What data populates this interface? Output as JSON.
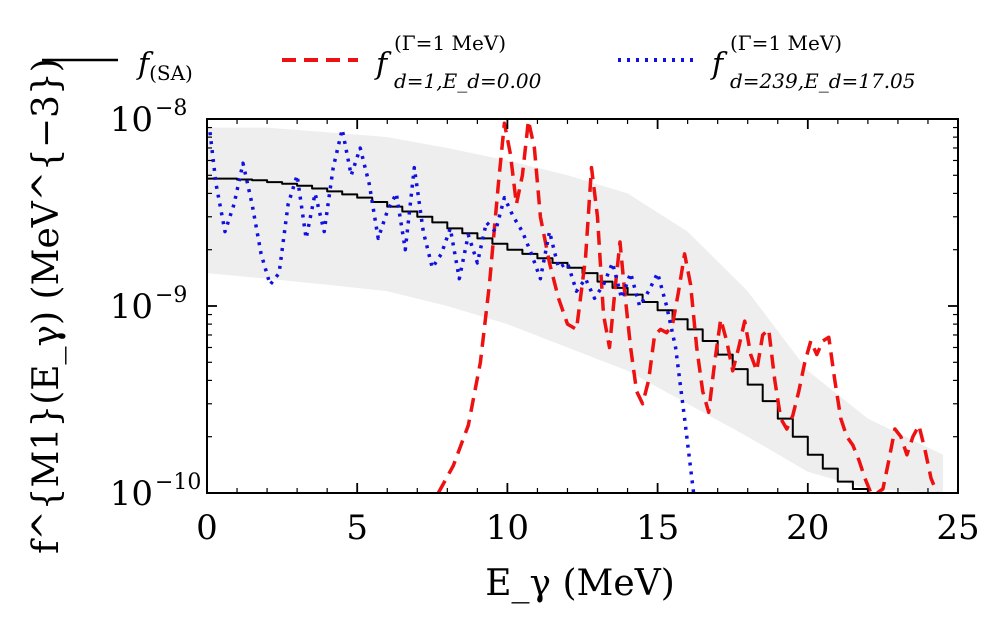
{
  "chart_data": {
    "type": "line",
    "xlabel": "E_γ (MeV)",
    "ylabel": "f^{M1}(E_γ) (MeV^{−3})",
    "xlim": [
      0,
      25
    ],
    "ylim": [
      1e-10,
      1e-08
    ],
    "yscale": "log",
    "x_ticks": [
      0,
      5,
      10,
      15,
      20,
      25
    ],
    "x_tick_labels": [
      "0",
      "5",
      "10",
      "15",
      "20",
      "25"
    ],
    "y_ticks": [
      1e-10,
      1e-09,
      1e-08
    ],
    "y_tick_labels": [
      "10",
      "10",
      "10"
    ],
    "y_tick_exponents": [
      "−10",
      "−9",
      "−8"
    ],
    "grid": false,
    "legend_position": "top",
    "legend": [
      {
        "label": "f",
        "sub": "(SA)",
        "sup": ""
      },
      {
        "label": "f",
        "sub": "d=1,E_d=0.00",
        "sup": "(Γ=1 MeV)"
      },
      {
        "label": "f",
        "sub": "d=239,E_d=17.05",
        "sup": "(Γ=1 MeV)"
      }
    ],
    "series": [
      {
        "name": "f(SA)",
        "color": "#000000",
        "style": "step",
        "x": [
          0,
          0.5,
          1,
          1.5,
          2,
          2.5,
          3,
          3.5,
          4,
          4.5,
          5,
          5.5,
          6,
          6.5,
          7,
          7.5,
          8,
          8.5,
          9,
          9.5,
          10,
          10.5,
          11,
          11.5,
          12,
          12.5,
          13,
          13.5,
          14,
          14.5,
          15,
          15.5,
          16,
          16.5,
          17,
          17.5,
          18,
          18.5,
          19,
          19.5,
          20,
          20.5,
          21,
          21.5,
          22
        ],
        "y": [
          4.8e-09,
          4.8e-09,
          4.75e-09,
          4.7e-09,
          4.6e-09,
          4.5e-09,
          4.4e-09,
          4.25e-09,
          4.1e-09,
          3.95e-09,
          3.8e-09,
          3.6e-09,
          3.4e-09,
          3.2e-09,
          3e-09,
          2.8e-09,
          2.6e-09,
          2.45e-09,
          2.3e-09,
          2.15e-09,
          2e-09,
          1.9e-09,
          1.8e-09,
          1.7e-09,
          1.6e-09,
          1.5e-09,
          1.35e-09,
          1.25e-09,
          1.15e-09,
          1.05e-09,
          9.5e-10,
          8.5e-10,
          7.5e-10,
          6.5e-10,
          5.5e-10,
          4.6e-10,
          3.8e-10,
          3.1e-10,
          2.5e-10,
          2e-10,
          1.6e-10,
          1.35e-10,
          1.15e-10,
          1.05e-10,
          1e-10
        ]
      },
      {
        "name": "f(Γ=1 MeV) d=1,Ed=0.00",
        "color": "#ee1111",
        "style": "dashed",
        "x": [
          7.7,
          8.2,
          8.7,
          9.1,
          9.4,
          9.7,
          9.9,
          10.1,
          10.3,
          10.5,
          10.7,
          10.9,
          11.1,
          11.4,
          11.7,
          12.0,
          12.3,
          12.6,
          12.8,
          13.0,
          13.2,
          13.4,
          13.6,
          13.75,
          13.9,
          14.1,
          14.3,
          14.5,
          14.7,
          14.9,
          15.1,
          15.3,
          15.5,
          15.7,
          15.9,
          16.1,
          16.3,
          16.5,
          16.7,
          16.9,
          17.1,
          17.3,
          17.5,
          17.7,
          17.9,
          18.1,
          18.3,
          18.5,
          18.7,
          18.9,
          19.1,
          19.3,
          19.5,
          19.7,
          19.9,
          20.1,
          20.3,
          20.5,
          20.7,
          20.9,
          21.1,
          21.3,
          21.5,
          21.7,
          21.9,
          22.1,
          22.3,
          22.5,
          22.7,
          22.9,
          23.1,
          23.3,
          23.5,
          23.7,
          23.9,
          24.1,
          24.3
        ],
        "y": [
          1e-10,
          1.4e-10,
          2.3e-10,
          5e-10,
          1.3e-09,
          4.5e-09,
          9.5e-09,
          6.5e-09,
          3.5e-09,
          5e-09,
          9.8e-09,
          7e-09,
          3e-09,
          1.7e-09,
          1.1e-09,
          8e-10,
          7.5e-10,
          1.8e-09,
          5.5e-09,
          3e-09,
          9e-10,
          6e-10,
          1.3e-09,
          2.2e-09,
          1.2e-09,
          6e-10,
          3.5e-10,
          3e-10,
          4e-10,
          7e-10,
          7.5e-10,
          7.2e-10,
          8e-10,
          1.2e-09,
          1.9e-09,
          1.3e-09,
          6e-10,
          3.5e-10,
          2.7e-10,
          5e-10,
          8.5e-10,
          6.5e-10,
          4.5e-10,
          6e-10,
          8.3e-10,
          5.5e-10,
          4.5e-10,
          7e-10,
          7.5e-10,
          4e-10,
          2.5e-10,
          2.2e-10,
          2.6e-10,
          3.5e-10,
          5e-10,
          6.5e-10,
          5.5e-10,
          6.5e-10,
          6.8e-10,
          4e-10,
          2.5e-10,
          2e-10,
          1.8e-10,
          1.5e-10,
          1.2e-10,
          1e-10,
          1e-10,
          1.05e-10,
          1.5e-10,
          2.2e-10,
          2e-10,
          1.6e-10,
          2e-10,
          2.3e-10,
          1.7e-10,
          1.2e-10,
          1e-10
        ]
      },
      {
        "name": "f(Γ=1 MeV) d=239,Ed=17.05",
        "color": "#1010e0",
        "style": "dotted",
        "x": [
          0.1,
          0.3,
          0.6,
          0.9,
          1.2,
          1.5,
          1.8,
          2.1,
          2.4,
          2.7,
          3.0,
          3.3,
          3.6,
          3.9,
          4.2,
          4.5,
          4.8,
          5.1,
          5.4,
          5.7,
          6.0,
          6.3,
          6.6,
          6.9,
          7.2,
          7.5,
          7.8,
          8.1,
          8.4,
          8.7,
          9.0,
          9.3,
          9.6,
          9.9,
          10.2,
          10.5,
          10.8,
          11.1,
          11.4,
          11.7,
          12.0,
          12.3,
          12.6,
          12.9,
          13.2,
          13.5,
          13.8,
          14.1,
          14.4,
          14.7,
          15.0,
          15.3,
          15.6,
          15.9,
          16.2
        ],
        "y": [
          8.5e-09,
          4.5e-09,
          2.5e-09,
          3.5e-09,
          5.8e-09,
          3.5e-09,
          1.9e-09,
          1.3e-09,
          1.5e-09,
          3.5e-09,
          5e-09,
          2.3e-09,
          4e-09,
          2.5e-09,
          5.5e-09,
          8.8e-09,
          5e-09,
          7e-09,
          4.5e-09,
          2.3e-09,
          3.2e-09,
          4e-09,
          2e-09,
          5.5e-09,
          2.5e-09,
          1.6e-09,
          1.9e-09,
          2.6e-09,
          1.4e-09,
          2.4e-09,
          1.7e-09,
          2.8e-09,
          2.5e-09,
          3.8e-09,
          3e-09,
          2.5e-09,
          1.9e-09,
          1.4e-09,
          2.5e-09,
          1.6e-09,
          1.7e-09,
          1.2e-09,
          1.4e-09,
          1.1e-09,
          1.3e-09,
          1.7e-09,
          1.1e-09,
          1.5e-09,
          1e-09,
          1.2e-09,
          1.5e-09,
          1e-09,
          6e-10,
          2.5e-10,
          1e-10
        ]
      }
    ],
    "band": {
      "name": "background",
      "color": "#eeeeee",
      "x": [
        0,
        2,
        4,
        6,
        8,
        10,
        12,
        14,
        16,
        18,
        20,
        22,
        24.5
      ],
      "upper": [
        9e-09,
        9e-09,
        8.5e-09,
        8e-09,
        7e-09,
        6e-09,
        5e-09,
        4e-09,
        2.5e-09,
        1.2e-09,
        4.5e-10,
        2.5e-10,
        1.6e-10
      ],
      "lower": [
        1.5e-09,
        1.4e-09,
        1.3e-09,
        1.2e-09,
        1e-09,
        8e-10,
        6e-10,
        4.5e-10,
        3e-10,
        2e-10,
        1.3e-10,
        1.05e-10,
        1e-10
      ]
    }
  }
}
